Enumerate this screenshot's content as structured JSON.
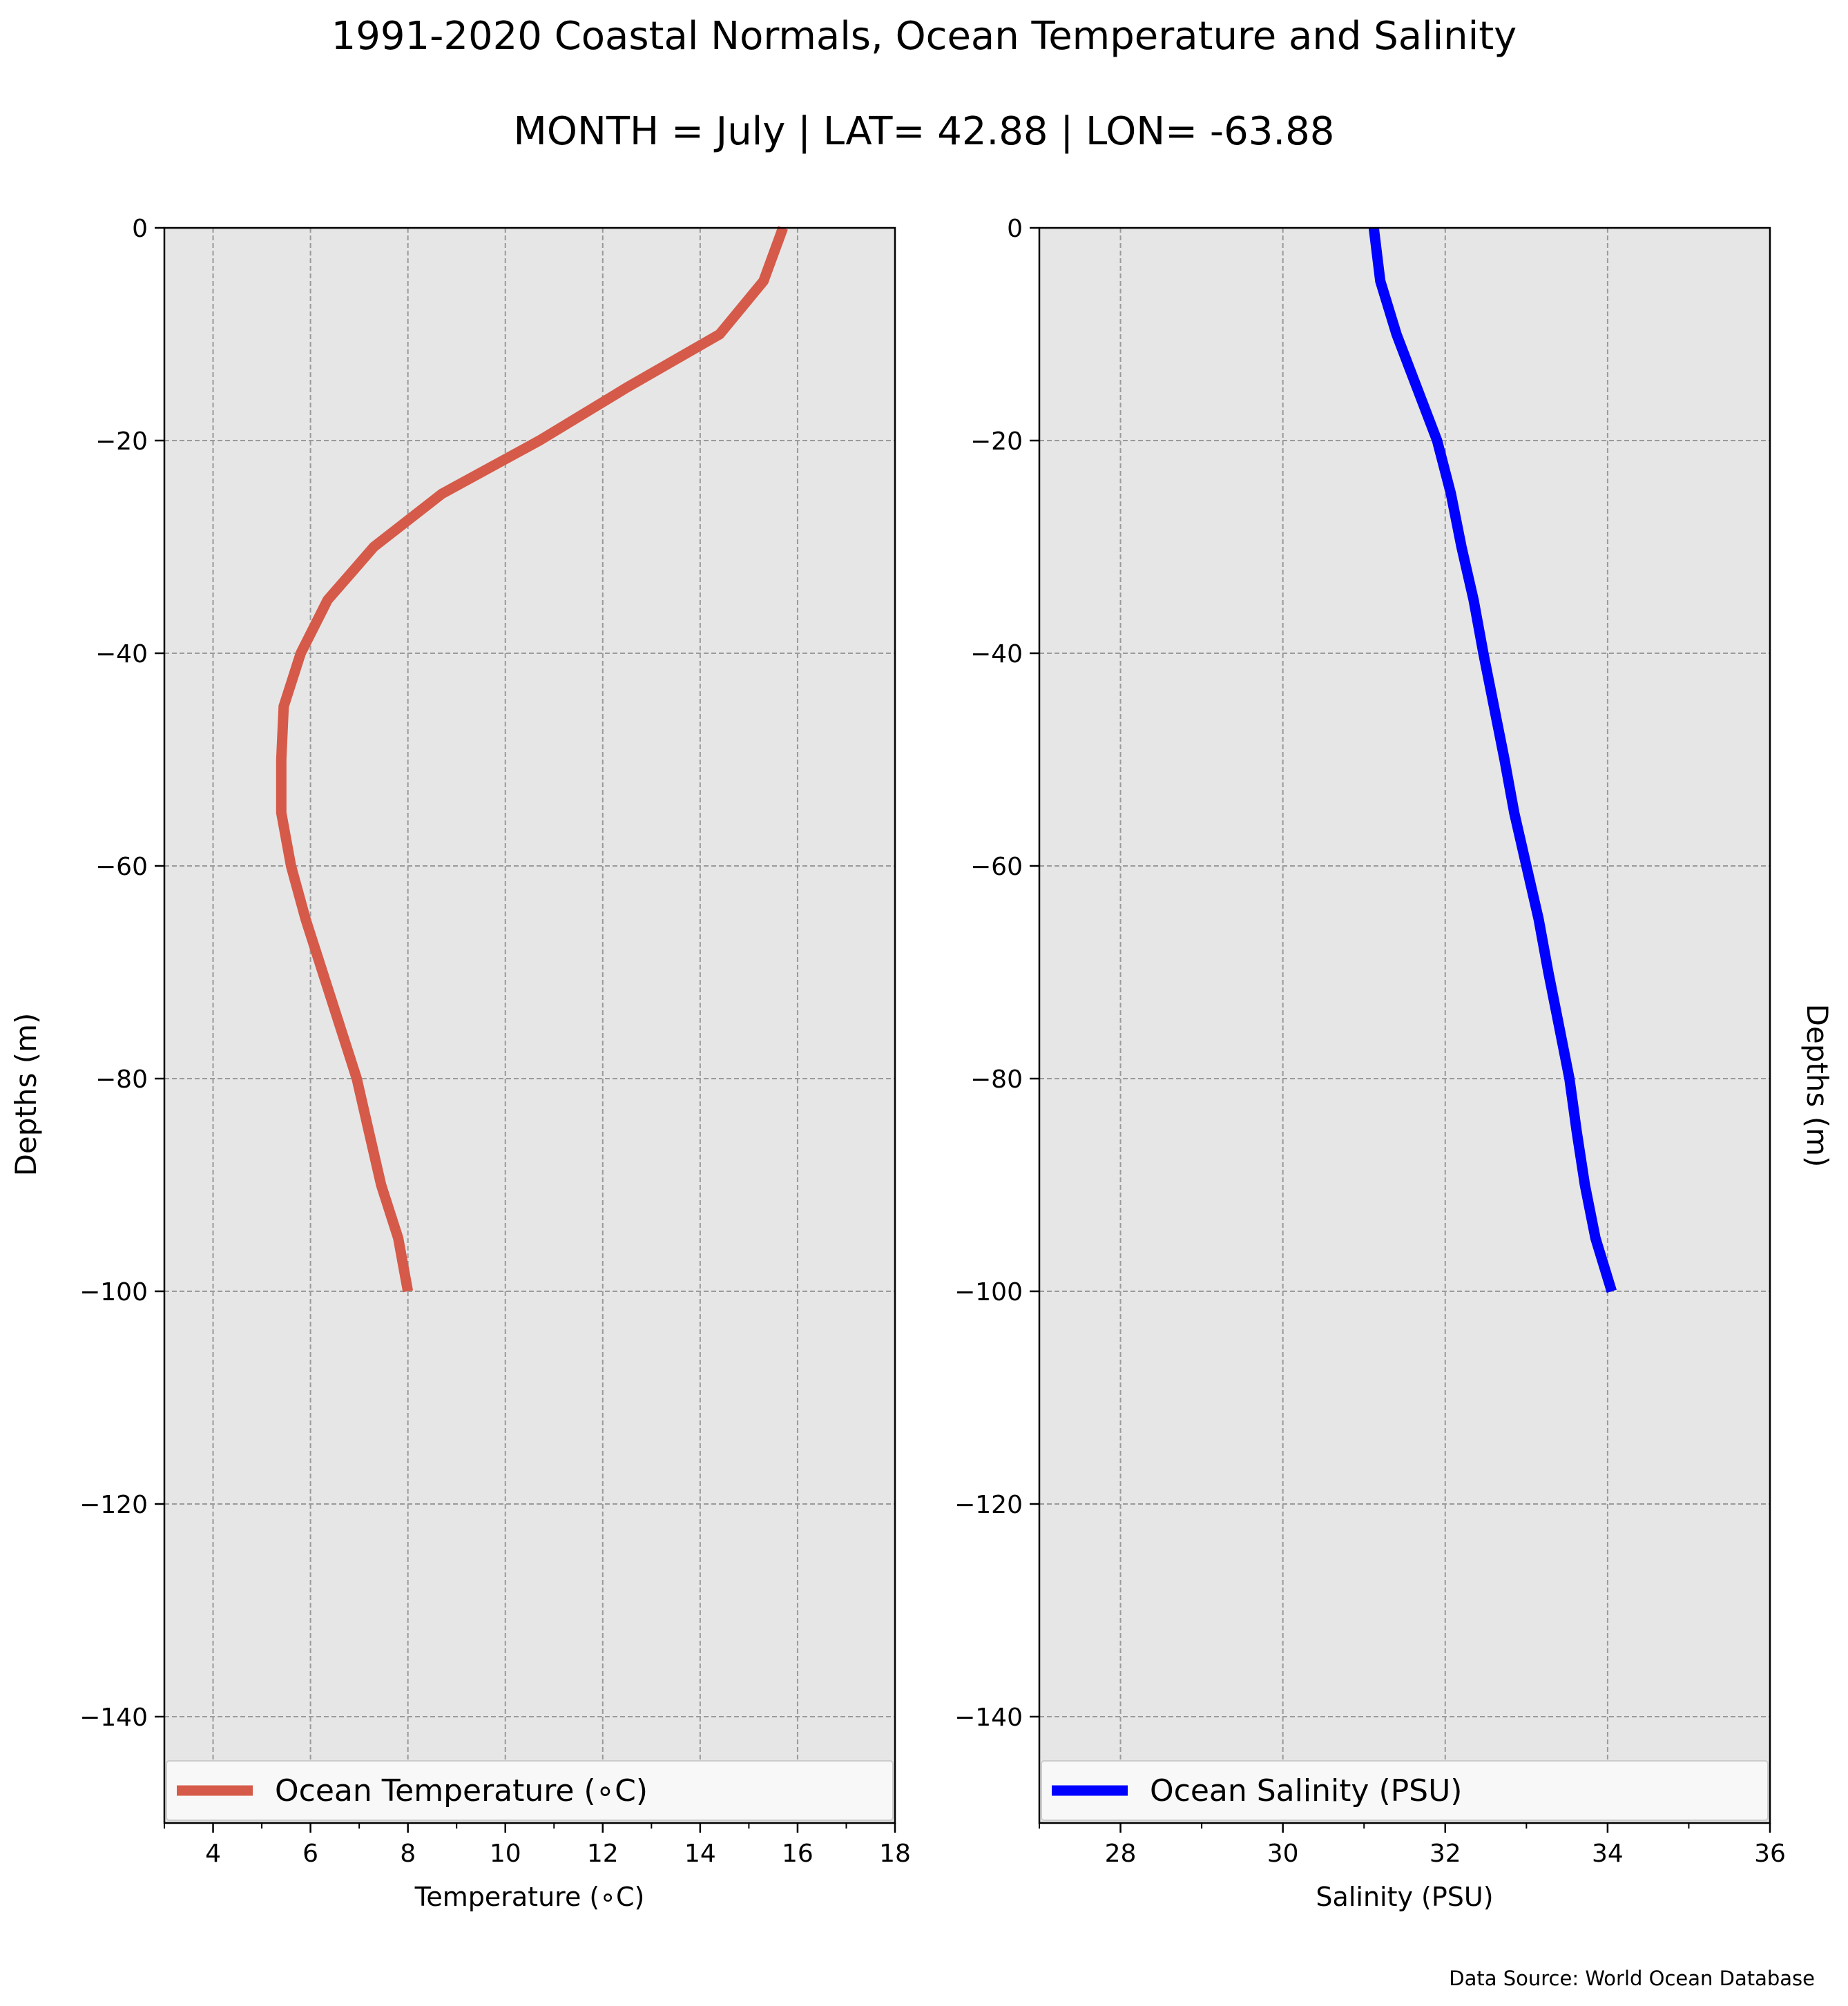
{
  "figure": {
    "title": "1991-2020 Coastal Normals, Ocean Temperature and Salinity",
    "subtitle": "MONTH = July | LAT= 42.88 | LON= -63.88",
    "source": "Data Source: World Ocean Database"
  },
  "chart_data": [
    {
      "type": "line",
      "xlabel": "Temperature (∘C)",
      "ylabel": "Depths (m)",
      "xlim": [
        3,
        18
      ],
      "ylim": [
        -150,
        0
      ],
      "xticks": [
        4,
        6,
        8,
        10,
        12,
        14,
        16,
        18
      ],
      "xtick_labels": [
        "4",
        "6",
        "8",
        "10",
        "12",
        "14",
        "16",
        "18"
      ],
      "yticks": [
        0,
        -20,
        -40,
        -60,
        -80,
        -100,
        -120,
        -140
      ],
      "ytick_labels": [
        "0",
        "−20",
        "−40",
        "−60",
        "−80",
        "−100",
        "−120",
        "−140"
      ],
      "grid": true,
      "legend_position": "bottom",
      "series": [
        {
          "name": "Ocean Temperature (∘C)",
          "color": "#d65a49",
          "x": [
            15.7,
            15.3,
            14.4,
            12.5,
            10.7,
            8.7,
            7.3,
            6.35,
            5.8,
            5.45,
            5.4,
            5.4,
            5.6,
            5.9,
            6.25,
            6.6,
            6.95,
            7.2,
            7.45,
            7.8,
            8.0
          ],
          "y": [
            0,
            -5,
            -10,
            -15,
            -20,
            -25,
            -30,
            -35,
            -40,
            -45,
            -50,
            -55,
            -60,
            -65,
            -70,
            -75,
            -80,
            -85,
            -90,
            -95,
            -100
          ]
        }
      ]
    },
    {
      "type": "line",
      "xlabel": "Salinity (PSU)",
      "ylabel": "Depths (m)",
      "xlim": [
        27,
        36
      ],
      "ylim": [
        -150,
        0
      ],
      "xticks": [
        28,
        30,
        32,
        34,
        36
      ],
      "xtick_labels": [
        "28",
        "30",
        "32",
        "34",
        "36"
      ],
      "yticks": [
        0,
        -20,
        -40,
        -60,
        -80,
        -100,
        -120,
        -140
      ],
      "ytick_labels": [
        "0",
        "−20",
        "−40",
        "−60",
        "−80",
        "−100",
        "−120",
        "−140"
      ],
      "grid": true,
      "legend_position": "bottom",
      "series": [
        {
          "name": "Ocean Salinity (PSU)",
          "color": "#0000ff",
          "x": [
            31.12,
            31.2,
            31.4,
            31.65,
            31.9,
            32.07,
            32.2,
            32.35,
            32.47,
            32.6,
            32.73,
            32.85,
            33.0,
            33.15,
            33.27,
            33.4,
            33.53,
            33.62,
            33.72,
            33.85,
            34.05
          ],
          "y": [
            0,
            -5,
            -10,
            -15,
            -20,
            -25,
            -30,
            -35,
            -40,
            -45,
            -50,
            -55,
            -60,
            -65,
            -70,
            -75,
            -80,
            -85,
            -90,
            -95,
            -100
          ]
        }
      ]
    }
  ]
}
